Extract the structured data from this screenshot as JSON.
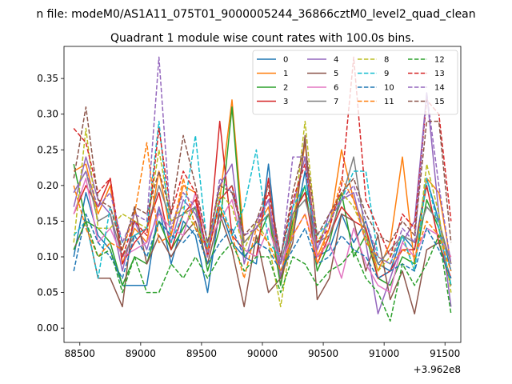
{
  "chart_data": {
    "type": "line",
    "suptitle": "n file: modeM0/AS1A11_075T01_9000005244_36866cztM0_level2_quad_clean",
    "title": "Quadrant 1 module wise count rates with 100.0s bins.",
    "xlabel": "",
    "ylabel": "",
    "offset_label": "+3.962e8",
    "xlim": [
      88370,
      91630
    ],
    "ylim": [
      -0.02,
      0.395
    ],
    "xticks": [
      88500,
      89000,
      89500,
      90000,
      90500,
      91000,
      91500
    ],
    "yticks": [
      0.0,
      0.05,
      0.1,
      0.15,
      0.2,
      0.25,
      0.3,
      0.35
    ],
    "ytick_labels": [
      "0.00",
      "0.05",
      "0.10",
      "0.15",
      "0.20",
      "0.25",
      "0.30",
      "0.35"
    ],
    "grid": false,
    "legend_position": "top-right",
    "x": [
      88450,
      88550,
      88650,
      88750,
      88850,
      88950,
      89050,
      89150,
      89250,
      89350,
      89450,
      89550,
      89650,
      89750,
      89850,
      89950,
      90050,
      90150,
      90250,
      90350,
      90450,
      90550,
      90650,
      90750,
      90850,
      90950,
      91050,
      91150,
      91250,
      91350,
      91450,
      91550
    ],
    "series": [
      {
        "name": "0",
        "color": "#1f77b4",
        "dash": false,
        "values": [
          0.1,
          0.19,
          0.13,
          0.11,
          0.06,
          0.06,
          0.06,
          0.17,
          0.09,
          0.15,
          0.13,
          0.05,
          0.17,
          0.12,
          0.1,
          0.09,
          0.23,
          0.07,
          0.13,
          0.22,
          0.1,
          0.11,
          0.16,
          0.12,
          0.15,
          0.09,
          0.08,
          0.13,
          0.11,
          0.21,
          0.15,
          0.08
        ]
      },
      {
        "name": "1",
        "color": "#ff7f0e",
        "dash": false,
        "values": [
          0.22,
          0.23,
          0.16,
          0.2,
          0.09,
          0.14,
          0.12,
          0.22,
          0.13,
          0.2,
          0.19,
          0.1,
          0.18,
          0.32,
          0.12,
          0.14,
          0.17,
          0.06,
          0.14,
          0.26,
          0.1,
          0.14,
          0.25,
          0.18,
          0.14,
          0.08,
          0.12,
          0.24,
          0.09,
          0.21,
          0.19,
          0.09
        ]
      },
      {
        "name": "2",
        "color": "#2ca02c",
        "dash": false,
        "values": [
          0.23,
          0.15,
          0.14,
          0.12,
          0.06,
          0.1,
          0.09,
          0.15,
          0.11,
          0.14,
          0.17,
          0.08,
          0.14,
          0.31,
          0.1,
          0.12,
          0.16,
          0.06,
          0.15,
          0.2,
          0.08,
          0.12,
          0.19,
          0.1,
          0.13,
          0.07,
          0.06,
          0.1,
          0.09,
          0.18,
          0.14,
          0.06
        ]
      },
      {
        "name": "3",
        "color": "#d62728",
        "dash": false,
        "values": [
          0.16,
          0.2,
          0.17,
          0.21,
          0.09,
          0.12,
          0.14,
          0.19,
          0.11,
          0.16,
          0.18,
          0.1,
          0.29,
          0.13,
          0.11,
          0.1,
          0.21,
          0.07,
          0.16,
          0.19,
          0.09,
          0.13,
          0.17,
          0.15,
          0.14,
          0.07,
          0.08,
          0.11,
          0.11,
          0.2,
          0.12,
          0.07
        ]
      },
      {
        "name": "4",
        "color": "#9467bd",
        "dash": false,
        "values": [
          0.17,
          0.24,
          0.18,
          0.16,
          0.08,
          0.15,
          0.11,
          0.17,
          0.12,
          0.18,
          0.16,
          0.11,
          0.2,
          0.23,
          0.09,
          0.15,
          0.18,
          0.07,
          0.17,
          0.24,
          0.11,
          0.16,
          0.18,
          0.19,
          0.12,
          0.02,
          0.07,
          0.12,
          0.15,
          0.33,
          0.16,
          0.03
        ]
      },
      {
        "name": "5",
        "color": "#8c564b",
        "dash": false,
        "values": [
          0.11,
          0.15,
          0.07,
          0.07,
          0.03,
          0.17,
          0.09,
          0.13,
          0.1,
          0.13,
          0.15,
          0.09,
          0.16,
          0.11,
          0.03,
          0.13,
          0.05,
          0.07,
          0.12,
          0.27,
          0.04,
          0.07,
          0.16,
          0.15,
          0.08,
          0.13,
          0.04,
          0.08,
          0.02,
          0.11,
          0.12,
          0.06
        ]
      },
      {
        "name": "6",
        "color": "#e377c2",
        "dash": false,
        "values": [
          0.16,
          0.21,
          0.12,
          0.14,
          0.1,
          0.11,
          0.12,
          0.16,
          0.14,
          0.13,
          0.19,
          0.12,
          0.15,
          0.18,
          0.11,
          0.1,
          0.14,
          0.09,
          0.13,
          0.16,
          0.1,
          0.12,
          0.07,
          0.14,
          0.09,
          0.06,
          0.05,
          0.12,
          0.1,
          0.14,
          0.13,
          0.1
        ]
      },
      {
        "name": "7",
        "color": "#7f7f7f",
        "dash": false,
        "values": [
          0.19,
          0.22,
          0.15,
          0.16,
          0.1,
          0.13,
          0.14,
          0.2,
          0.15,
          0.16,
          0.17,
          0.11,
          0.18,
          0.2,
          0.12,
          0.14,
          0.16,
          0.09,
          0.16,
          0.18,
          0.12,
          0.13,
          0.18,
          0.24,
          0.13,
          0.09,
          0.11,
          0.13,
          0.12,
          0.17,
          0.15,
          0.09
        ]
      },
      {
        "name": "8",
        "color": "#bcbd22",
        "dash": true,
        "values": [
          0.12,
          0.28,
          0.14,
          0.14,
          0.16,
          0.15,
          0.14,
          0.25,
          0.15,
          0.17,
          0.14,
          0.12,
          0.19,
          0.17,
          0.11,
          0.15,
          0.12,
          0.03,
          0.14,
          0.29,
          0.12,
          0.15,
          0.19,
          0.17,
          0.13,
          0.08,
          0.1,
          0.13,
          0.08,
          0.23,
          0.16,
          0.05
        ]
      },
      {
        "name": "9",
        "color": "#17becf",
        "dash": true,
        "values": [
          0.13,
          0.15,
          0.07,
          0.17,
          0.12,
          0.13,
          0.14,
          0.29,
          0.12,
          0.16,
          0.27,
          0.11,
          0.18,
          0.13,
          0.17,
          0.25,
          0.12,
          0.1,
          0.17,
          0.2,
          0.13,
          0.15,
          0.18,
          0.22,
          0.22,
          0.1,
          0.09,
          0.13,
          0.08,
          0.21,
          0.14,
          0.06
        ]
      },
      {
        "name": "10",
        "color": "#1f77b4",
        "dash": true,
        "values": [
          0.08,
          0.16,
          0.12,
          0.1,
          0.07,
          0.13,
          0.1,
          0.15,
          0.13,
          0.12,
          0.14,
          0.09,
          0.12,
          0.14,
          0.1,
          0.12,
          0.11,
          0.08,
          0.11,
          0.14,
          0.09,
          0.1,
          0.13,
          0.11,
          0.1,
          0.07,
          0.08,
          0.09,
          0.08,
          0.14,
          0.11,
          0.07
        ]
      },
      {
        "name": "11",
        "color": "#ff7f0e",
        "dash": true,
        "values": [
          0.2,
          0.14,
          0.1,
          0.12,
          0.11,
          0.16,
          0.26,
          0.12,
          0.13,
          0.21,
          0.14,
          0.11,
          0.17,
          0.13,
          0.07,
          0.14,
          0.12,
          0.08,
          0.13,
          0.16,
          0.09,
          0.14,
          0.21,
          0.18,
          0.12,
          0.1,
          0.09,
          0.11,
          0.1,
          0.15,
          0.13,
          0.08
        ]
      },
      {
        "name": "12",
        "color": "#2ca02c",
        "dash": true,
        "values": [
          0.11,
          0.15,
          0.1,
          0.11,
          0.05,
          0.1,
          0.05,
          0.05,
          0.09,
          0.07,
          0.1,
          0.07,
          0.1,
          0.12,
          0.08,
          0.1,
          0.1,
          0.05,
          0.1,
          0.09,
          0.06,
          0.08,
          0.09,
          0.11,
          0.07,
          0.05,
          0.01,
          0.09,
          0.06,
          0.09,
          0.13,
          0.02
        ]
      },
      {
        "name": "13",
        "color": "#d62728",
        "dash": true,
        "values": [
          0.28,
          0.26,
          0.19,
          0.21,
          0.1,
          0.15,
          0.13,
          0.28,
          0.16,
          0.22,
          0.19,
          0.1,
          0.18,
          0.2,
          0.13,
          0.14,
          0.19,
          0.1,
          0.18,
          0.23,
          0.12,
          0.14,
          0.2,
          0.38,
          0.18,
          0.14,
          0.1,
          0.16,
          0.14,
          0.32,
          0.3,
          0.15
        ]
      },
      {
        "name": "14",
        "color": "#9467bd",
        "dash": true,
        "values": [
          0.19,
          0.22,
          0.17,
          0.19,
          0.12,
          0.16,
          0.15,
          0.38,
          0.14,
          0.19,
          0.17,
          0.1,
          0.21,
          0.19,
          0.13,
          0.14,
          0.18,
          0.09,
          0.24,
          0.24,
          0.11,
          0.15,
          0.18,
          0.2,
          0.15,
          0.1,
          0.09,
          0.14,
          0.12,
          0.33,
          0.2,
          0.09
        ]
      },
      {
        "name": "15",
        "color": "#8c564b",
        "dash": true,
        "values": [
          0.21,
          0.31,
          0.18,
          0.17,
          0.11,
          0.17,
          0.16,
          0.22,
          0.16,
          0.27,
          0.2,
          0.12,
          0.2,
          0.19,
          0.13,
          0.15,
          0.2,
          0.1,
          0.19,
          0.26,
          0.13,
          0.16,
          0.19,
          0.21,
          0.16,
          0.13,
          0.12,
          0.15,
          0.13,
          0.29,
          0.29,
          0.12
        ]
      }
    ]
  }
}
